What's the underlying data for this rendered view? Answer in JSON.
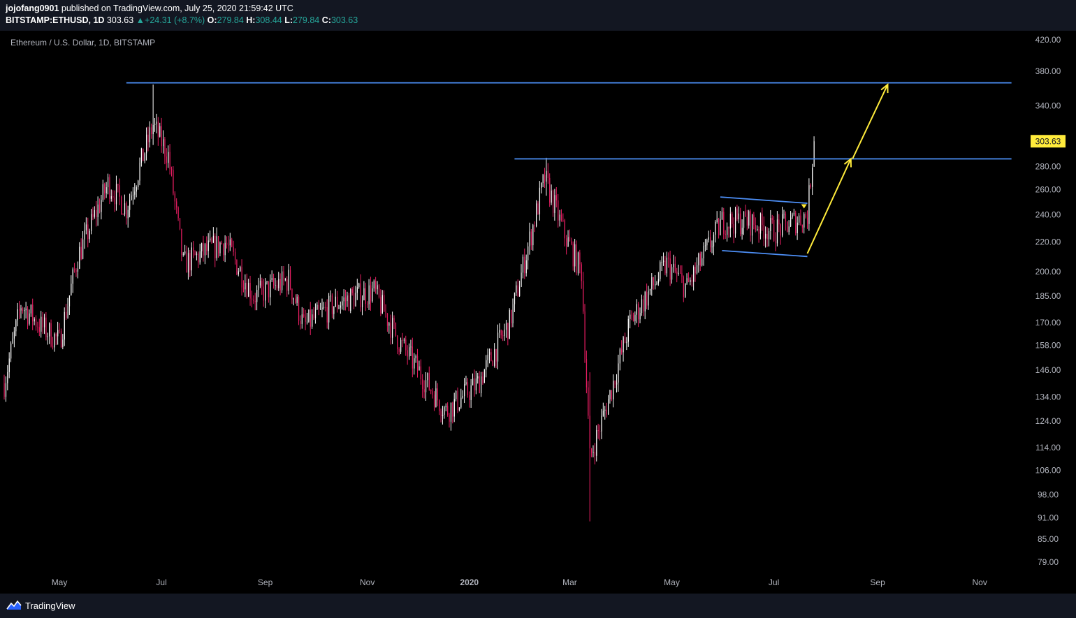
{
  "header": {
    "author": "jojofang0901",
    "published": "published on TradingView.com, July 25, 2020 21:59:42 UTC",
    "symbol": "BITSTAMP:ETHUSD, 1D",
    "last": "303.63",
    "change_arrow": "▲",
    "change": "+24.31 (+8.7%)",
    "o_label": "O:",
    "o_value": "279.84",
    "h_label": "H:",
    "h_value": "308.44",
    "l_label": "L:",
    "l_value": "279.84",
    "c_label": "C:",
    "c_value": "303.63"
  },
  "chart_title": "Ethereum / U.S. Dollar, 1D, BITSTAMP",
  "footer": {
    "brand": "TradingView",
    "logo_icon": "tradingview-logo-icon"
  },
  "colors": {
    "background": "#000000",
    "panel": "#131722",
    "up_candle": "#ffffff",
    "down_candle": "#e91e63",
    "trendline": "#4d8ff7",
    "arrow": "#ffeb3b",
    "price_label_bg": "#ffeb3b",
    "axis_text": "#b2b5be"
  },
  "chart_data": {
    "type": "candlestick",
    "scale": "log",
    "ylim": [
      75,
      430
    ],
    "y_ticks": [
      420,
      380,
      340,
      303.63,
      280,
      260,
      240,
      220,
      200,
      185,
      170,
      158,
      146,
      134,
      124,
      114,
      106,
      98,
      91,
      85,
      79
    ],
    "y_tick_labels": [
      "420.00",
      "380.00",
      "340.00",
      "303.63",
      "280.00",
      "260.00",
      "240.00",
      "220.00",
      "200.00",
      "185.00",
      "170.00",
      "158.00",
      "146.00",
      "134.00",
      "124.00",
      "114.00",
      "106.00",
      "98.00",
      "91.00",
      "85.00",
      "79.00"
    ],
    "x_labels": [
      "May",
      "Jul",
      "Sep",
      "Nov",
      "2020",
      "Mar",
      "May",
      "Jul",
      "Sep",
      "Nov"
    ],
    "x_label_dates": [
      "2019-05-01",
      "2019-07-01",
      "2019-09-01",
      "2019-11-01",
      "2020-01-01",
      "2020-03-01",
      "2020-05-01",
      "2020-07-01",
      "2020-09-01",
      "2020-11-01"
    ],
    "x_range": [
      "2019-03-29",
      "2020-12-01"
    ],
    "current_price": 303.63,
    "price_path": [
      [
        "2019-03-29",
        140
      ],
      [
        "2019-04-08",
        180
      ],
      [
        "2019-04-20",
        168
      ],
      [
        "2019-05-01",
        160
      ],
      [
        "2019-05-12",
        210
      ],
      [
        "2019-05-30",
        265
      ],
      [
        "2019-06-10",
        245
      ],
      [
        "2019-06-26",
        320
      ],
      [
        "2019-07-05",
        290
      ],
      [
        "2019-07-14",
        205
      ],
      [
        "2019-07-30",
        215
      ],
      [
        "2019-08-08",
        220
      ],
      [
        "2019-08-25",
        185
      ],
      [
        "2019-09-15",
        195
      ],
      [
        "2019-09-24",
        168
      ],
      [
        "2019-10-12",
        180
      ],
      [
        "2019-10-25",
        185
      ],
      [
        "2019-11-05",
        188
      ],
      [
        "2019-11-20",
        160
      ],
      [
        "2019-12-18",
        128
      ],
      [
        "2020-01-06",
        140
      ],
      [
        "2020-01-25",
        170
      ],
      [
        "2020-02-15",
        270
      ],
      [
        "2020-02-27",
        225
      ],
      [
        "2020-03-08",
        200
      ],
      [
        "2020-03-13",
        110
      ],
      [
        "2020-03-25",
        135
      ],
      [
        "2020-04-06",
        170
      ],
      [
        "2020-04-28",
        205
      ],
      [
        "2020-05-10",
        190
      ],
      [
        "2020-05-31",
        235
      ],
      [
        "2020-06-15",
        235
      ],
      [
        "2020-07-01",
        228
      ],
      [
        "2020-07-21",
        240
      ],
      [
        "2020-07-25",
        303.63
      ]
    ],
    "extreme_wicks": [
      {
        "date": "2019-06-26",
        "high": 364,
        "low": 300
      },
      {
        "date": "2020-02-16",
        "high": 288,
        "low": 255
      },
      {
        "date": "2020-03-13",
        "high": 145,
        "low": 90
      },
      {
        "date": "2020-07-25",
        "high": 308.44,
        "low": 279.84
      }
    ],
    "annotations": {
      "horizontal_lines": [
        {
          "price": 366,
          "from": "2019-06-10",
          "to": "2020-11-20"
        },
        {
          "price": 287,
          "from": "2020-01-28",
          "to": "2020-11-20"
        }
      ],
      "channel": [
        {
          "from": [
            "2020-05-30",
            254
          ],
          "to": [
            "2020-07-21",
            249
          ]
        },
        {
          "from": [
            "2020-05-31",
            214
          ],
          "to": [
            "2020-07-21",
            210
          ]
        }
      ],
      "arrows": [
        {
          "from": [
            "2020-07-21",
            212
          ],
          "to": [
            "2020-08-16",
            287
          ]
        },
        {
          "from": [
            "2020-08-17",
            287
          ],
          "to": [
            "2020-09-07",
            364
          ]
        }
      ]
    }
  }
}
